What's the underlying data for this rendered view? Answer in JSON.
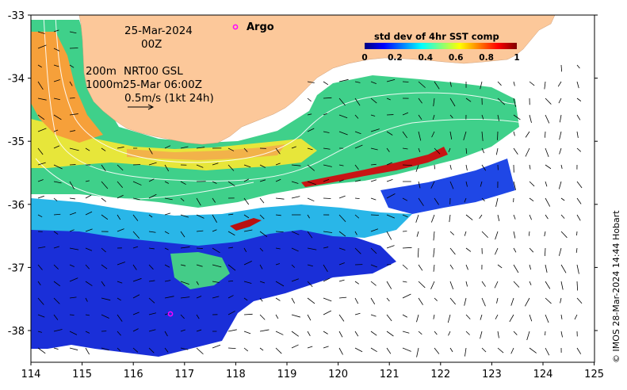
{
  "map": {
    "lon_ticks": [
      "114",
      "115",
      "116",
      "117",
      "118",
      "119",
      "120",
      "121",
      "122",
      "123",
      "124",
      "125"
    ],
    "lat_ticks": [
      "-33",
      "-34",
      "-35",
      "-36",
      "-37",
      "-38"
    ]
  },
  "annotations": {
    "date": "25-Mar-2024",
    "hour": "00Z",
    "isobath_200": "200m",
    "isobath_1000": "1000m",
    "current_source": "NRT00 GSL",
    "current_time": "25-Mar 06:00Z",
    "vector_scale": "0.5m/s (1kt 24h)"
  },
  "legend": {
    "title": "std dev of 4hr SST comp",
    "ticks": [
      "0",
      "0.2",
      "0.4",
      "0.6",
      "0.8",
      "1"
    ],
    "colormap": [
      "#00007f",
      "#0000ff",
      "#007fff",
      "#00ffff",
      "#7fff7f",
      "#ffff00",
      "#ff7f00",
      "#ff0000",
      "#7f0000"
    ]
  },
  "argo": {
    "label": "Argo",
    "marker_color": "#ff00ff"
  },
  "credit": "© IMOS 28-Mar-2024 14:44 Hobart",
  "colors": {
    "land": "#fcc89a",
    "isobath": "#ffffff"
  }
}
